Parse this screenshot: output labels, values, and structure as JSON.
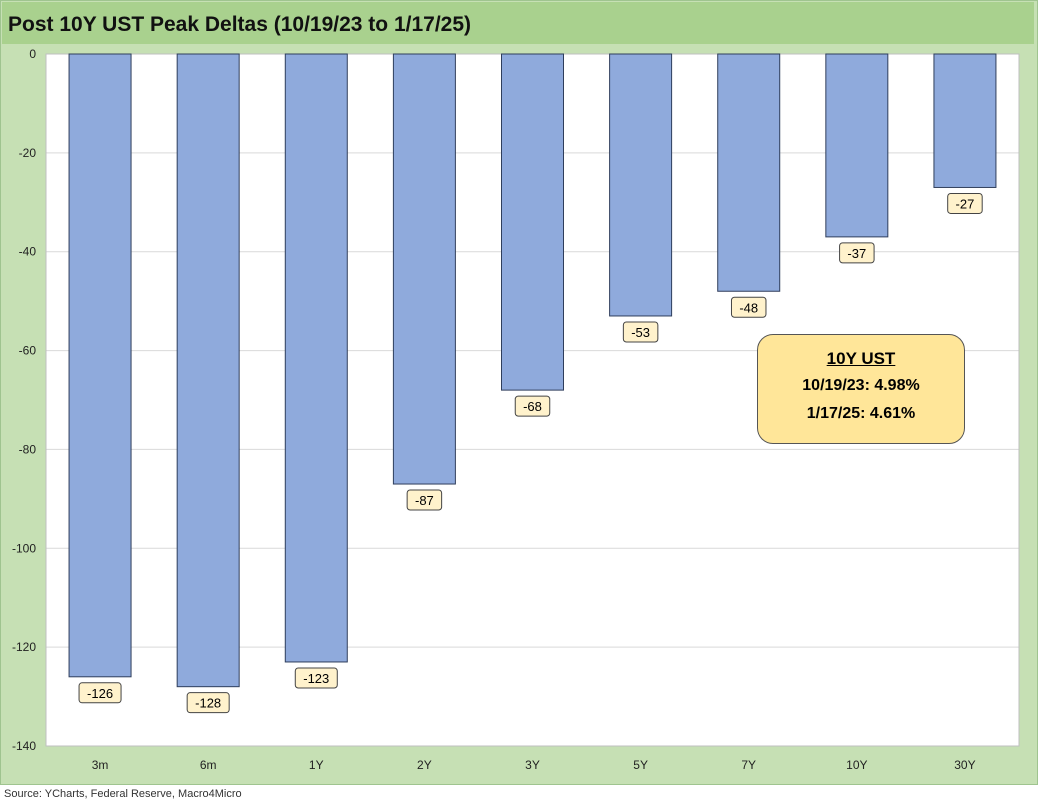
{
  "title": "Post 10Y UST Peak Deltas (10/19/23 to 1/17/25)",
  "source": "Source: YCharts, Federal Reserve, Macro4Micro",
  "callout": {
    "title": "10Y UST",
    "line1": "10/19/23: 4.98%",
    "line2": "1/17/25: 4.61%"
  },
  "colors": {
    "bar_fill": "#8faadc",
    "bar_stroke": "#2f3e5c",
    "label_fill": "#fff2cc",
    "frame": "#c6e0b4",
    "title_bar": "#a9d18e",
    "callout_fill": "#ffe699"
  },
  "chart_data": {
    "type": "bar",
    "categories": [
      "3m",
      "6m",
      "1Y",
      "2Y",
      "3Y",
      "5Y",
      "7Y",
      "10Y",
      "30Y"
    ],
    "values": [
      -126,
      -128,
      -123,
      -87,
      -68,
      -53,
      -48,
      -37,
      -27
    ],
    "data_labels": [
      "-126",
      "-128",
      "-123",
      "-87",
      "-68",
      "-53",
      "-48",
      "-37",
      "-27"
    ],
    "yticks": [
      "0",
      "-20",
      "-40",
      "-60",
      "-80",
      "-100",
      "-120",
      "-140"
    ],
    "ylim": [
      -140,
      0
    ],
    "grid": true,
    "legend": "none"
  }
}
